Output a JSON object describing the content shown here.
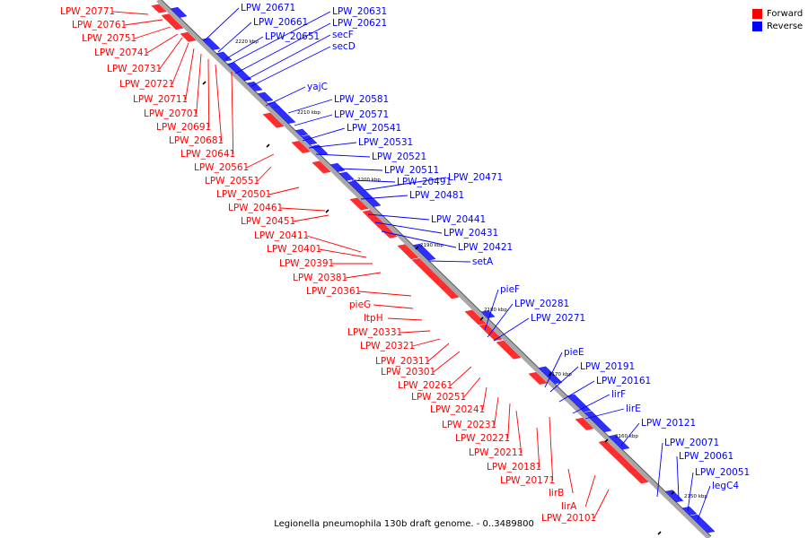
{
  "legend": {
    "forward_label": "Forward",
    "reverse_label": "Reverse",
    "forward_color": "#ff0000",
    "reverse_color": "#0000ff"
  },
  "caption": "Legionella pneumophila 130b draft genome. - 0..3489800",
  "ticks": [
    "2220 kbp",
    "2210 kbp",
    "2200 kbp",
    "2190 kbp",
    "2180 kbp",
    "2170 kbp",
    "2160 kbp",
    "2150 kbp"
  ],
  "right_labels": [
    "LPW_20671",
    "LPW_20661",
    "LPW_20651",
    "LPW_20631",
    "LPW_20621",
    "secF",
    "secD",
    "yajC",
    "LPW_20581",
    "LPW_20571",
    "LPW_20541",
    "LPW_20531",
    "LPW_20521",
    "LPW_20511",
    "LPW_20471",
    "LPW_20491",
    "LPW_20481",
    "LPW_20441",
    "LPW_20431",
    "LPW_20421",
    "setA",
    "pieF",
    "LPW_20281",
    "LPW_20271",
    "pieE",
    "LPW_20191",
    "LPW_20161",
    "lirF",
    "lirE",
    "LPW_20121",
    "LPW_20071",
    "LPW_20061",
    "LPW_20051",
    "legC4"
  ],
  "left_labels": [
    "LPW_20771",
    "LPW_20761",
    "LPW_20751",
    "LPW_20741",
    "LPW_20731",
    "LPW_20721",
    "LPW_20711",
    "LPW_20701",
    "LPW_20691",
    "LPW_20681",
    "LPW_20641",
    "LPW_20561",
    "LPW_20551",
    "LPW_20501",
    "LPW_20461",
    "LPW_20451",
    "LPW_20411",
    "LPW_20401",
    "LPW_20391",
    "LPW_20381",
    "LPW_20361",
    "pieG",
    "ltpH",
    "LPW_20331",
    "LPW_20321",
    "LPW_20311",
    "LPW_20301",
    "LPW_20261",
    "LPW_20251",
    "LPW_20241",
    "LPW_20231",
    "LPW_20221",
    "LPW_20211",
    "LPW_20181",
    "LPW_20171",
    "lirB",
    "lirA",
    "LPW_20101"
  ]
}
